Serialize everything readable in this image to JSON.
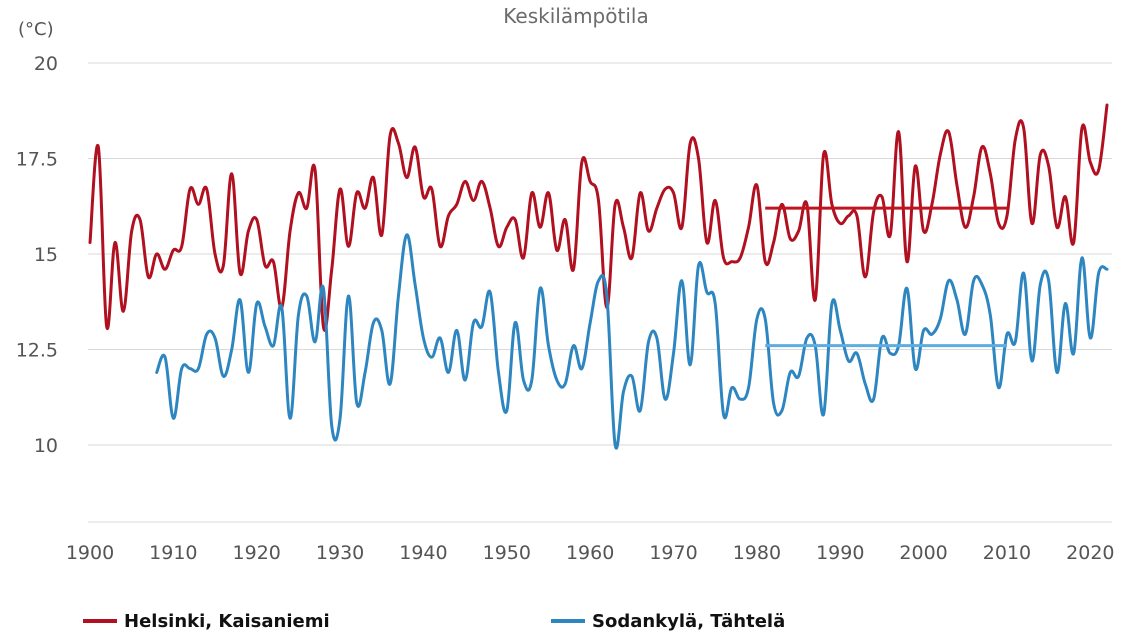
{
  "chart_data": {
    "type": "line",
    "title": "Keskilämpötila",
    "unit_label": "(°C)",
    "ylim": [
      7.9,
      20.6
    ],
    "yticks": [
      10,
      12.5,
      15,
      17.5,
      20
    ],
    "ytick_labels": [
      "10",
      "12.5",
      "15",
      "17.5",
      "20"
    ],
    "xlim": [
      1900,
      2022
    ],
    "xticks": [
      1900,
      1910,
      1920,
      1930,
      1940,
      1950,
      1960,
      1970,
      1980,
      1990,
      2000,
      2010,
      2020
    ],
    "grid": true,
    "legend_position": "bottom",
    "colors": {
      "helsinki": "#b0101f",
      "sodankyla": "#2e86c1",
      "helsinki_mean": "#c0141f",
      "sodankyla_mean": "#5dade2"
    },
    "series": [
      {
        "name": "Helsinki, Kaisaniemi",
        "key": "helsinki",
        "x_start": 1900,
        "values": [
          15.3,
          17.8,
          13.1,
          15.3,
          13.5,
          15.6,
          15.9,
          14.4,
          15.0,
          14.6,
          15.1,
          15.2,
          16.7,
          16.3,
          16.7,
          15.0,
          14.7,
          17.1,
          14.5,
          15.6,
          15.9,
          14.7,
          14.8,
          13.6,
          15.6,
          16.6,
          16.2,
          17.2,
          13.1,
          14.6,
          16.7,
          15.2,
          16.6,
          16.2,
          17.0,
          15.5,
          18.1,
          17.9,
          17.0,
          17.8,
          16.5,
          16.7,
          15.2,
          16.0,
          16.3,
          16.9,
          16.4,
          16.9,
          16.2,
          15.2,
          15.7,
          15.9,
          14.9,
          16.6,
          15.7,
          16.6,
          15.1,
          15.9,
          14.6,
          17.4,
          16.9,
          16.4,
          13.6,
          16.3,
          15.7,
          14.9,
          16.6,
          15.6,
          16.2,
          16.7,
          16.6,
          15.7,
          17.9,
          17.5,
          15.3,
          16.4,
          14.9,
          14.8,
          14.9,
          15.7,
          16.8,
          14.8,
          15.3,
          16.3,
          15.4,
          15.6,
          16.3,
          13.8,
          17.6,
          16.3,
          15.8,
          16.0,
          16.0,
          14.4,
          16.1,
          16.5,
          15.5,
          18.2,
          14.8,
          17.3,
          15.6,
          16.3,
          17.6,
          18.2,
          16.8,
          15.7,
          16.5,
          17.8,
          17.1,
          15.8,
          16.0,
          18.0,
          18.3,
          15.8,
          17.6,
          17.3,
          15.7,
          16.5,
          15.3,
          18.3,
          17.4,
          17.2,
          18.9
        ]
      },
      {
        "name": "Sodankylä, Tähtelä",
        "key": "sodankyla",
        "x_start": 1908,
        "values": [
          11.9,
          12.3,
          10.7,
          12.0,
          12.0,
          12.0,
          12.9,
          12.8,
          11.8,
          12.5,
          13.8,
          11.9,
          13.7,
          13.1,
          12.6,
          13.6,
          10.7,
          13.4,
          13.9,
          12.7,
          14.1,
          10.5,
          10.7,
          13.9,
          11.1,
          11.9,
          13.2,
          13.0,
          11.6,
          13.9,
          15.5,
          14.2,
          12.8,
          12.3,
          12.8,
          11.9,
          13.0,
          11.7,
          13.2,
          13.1,
          14.0,
          11.9,
          10.9,
          13.2,
          11.7,
          11.7,
          14.1,
          12.6,
          11.7,
          11.6,
          12.6,
          12.0,
          13.2,
          14.3,
          13.9,
          10.0,
          11.4,
          11.8,
          10.9,
          12.7,
          12.8,
          11.2,
          12.4,
          14.3,
          12.1,
          14.7,
          14.0,
          13.7,
          10.8,
          11.5,
          11.2,
          11.5,
          13.3,
          13.3,
          11.1,
          10.9,
          11.9,
          11.8,
          12.8,
          12.6,
          10.8,
          13.7,
          13.0,
          12.2,
          12.4,
          11.6,
          11.2,
          12.8,
          12.4,
          12.6,
          14.1,
          12.0,
          13.0,
          12.9,
          13.3,
          14.3,
          13.8,
          12.9,
          14.3,
          14.2,
          13.4,
          11.5,
          12.9,
          12.7,
          14.5,
          12.2,
          14.2,
          14.3,
          11.9,
          13.7,
          12.4,
          14.9,
          12.8,
          14.5,
          14.6
        ]
      }
    ],
    "reference_lines": [
      {
        "series": "helsinki",
        "x_range": [
          1981,
          2010
        ],
        "value": 16.2
      },
      {
        "series": "sodankyla",
        "x_range": [
          1981,
          2010
        ],
        "value": 12.6
      }
    ],
    "legend": [
      {
        "key": "helsinki",
        "label": "Helsinki, Kaisaniemi"
      },
      {
        "key": "sodankyla",
        "label": "Sodankylä, Tähtelä"
      }
    ]
  }
}
